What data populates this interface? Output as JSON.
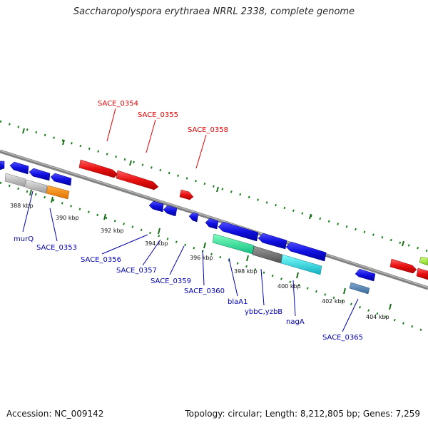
{
  "title": "Saccharopolyspora erythraea NRRL 2338, complete genome",
  "footer": {
    "accession": "Accession: NC_009142",
    "summary": "Topology: circular; Length: 8,212,805 bp; Genes: 7,259"
  },
  "colors": {
    "forward_gene": "#e81010",
    "reverse_gene": "#1010e0",
    "backbone": "#808080",
    "tick_minor": "#208020",
    "tick_major": "#1a6e1a"
  },
  "scale_labels": [
    "388 kbp",
    "390 kbp",
    "392 kbp",
    "394 kbp",
    "396 kbp",
    "398 kbp",
    "400 kbp",
    "402 kbp",
    "404 kbp"
  ],
  "labels_forward": [
    "SACE_0354",
    "SACE_0355",
    "SACE_0358"
  ],
  "labels_reverse": [
    "murQ",
    "SACE_0353",
    "SACE_0356",
    "SACE_0357",
    "SACE_0359",
    "SACE_0360",
    "blaA1",
    "ybbC,yzbB",
    "nagA",
    "SACE_0365"
  ]
}
